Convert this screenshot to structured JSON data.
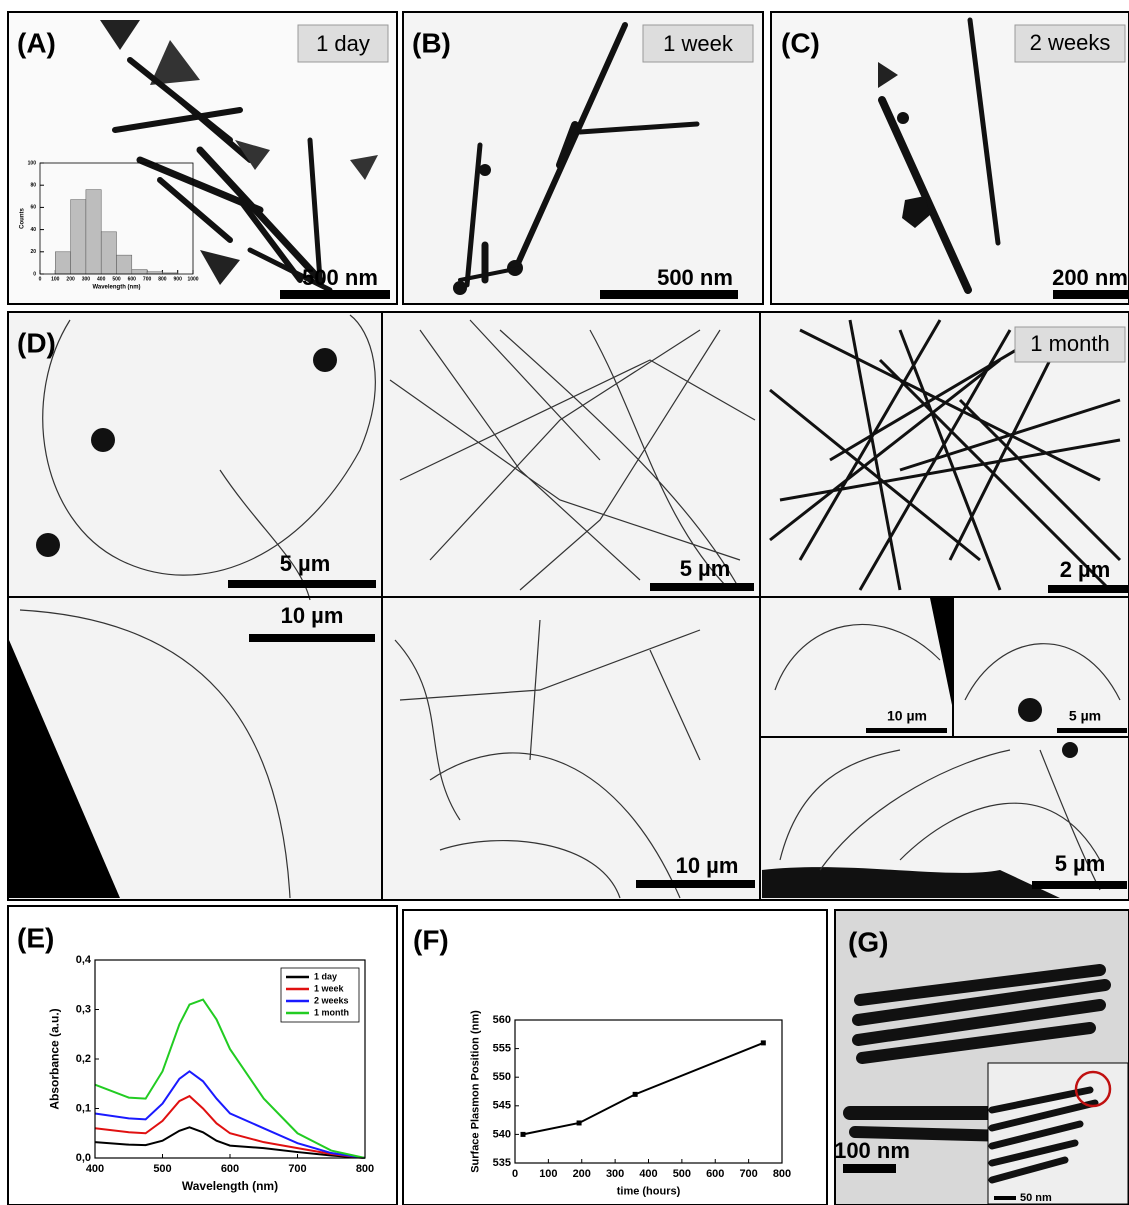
{
  "panels": [
    {
      "label": "(A)",
      "tag": "1 day",
      "scale_bar": "500 nm"
    },
    {
      "label": "(B)",
      "tag": "1 week",
      "scale_bar": "500 nm"
    },
    {
      "label": "(C)",
      "tag": "2 weeks",
      "scale_bar": "200 nm"
    },
    {
      "label": "(D)",
      "tag": "1 month",
      "scale_bars": [
        "5 µm",
        "5 µm",
        "2 µm",
        "10 µm",
        "10 µm",
        "10 µm",
        "5 µm",
        "5 µm"
      ]
    },
    {
      "label": "(E)"
    },
    {
      "label": "(F)"
    },
    {
      "label": "(G)",
      "scale_bar": "100 nm",
      "inset_scale_bar": "50 nm"
    }
  ],
  "chart_data": [
    {
      "type": "histogram",
      "xlabel": "Wavelength (nm)",
      "ylabel": "Counts",
      "bins": [
        100,
        200,
        300,
        400,
        500,
        600,
        700,
        800,
        900
      ],
      "values": [
        20,
        67,
        76,
        38,
        17,
        4,
        2,
        1
      ],
      "color": "#bdbdbd",
      "xlim": [
        0,
        1000
      ],
      "xticks": [
        0,
        100,
        200,
        300,
        400,
        500,
        600,
        700,
        800,
        900,
        1000
      ],
      "ylim": [
        0,
        100
      ],
      "yticks": [
        0,
        20,
        40,
        60,
        80,
        100
      ]
    },
    {
      "type": "line",
      "xlabel": "Wavelength (nm)",
      "ylabel": "Absorbance (a.u.)",
      "x": [
        400,
        450,
        475,
        500,
        525,
        540,
        560,
        580,
        600,
        650,
        700,
        750,
        800
      ],
      "series": [
        {
          "name": "1 day",
          "color": "#000000",
          "values": [
            0.032,
            0.027,
            0.026,
            0.035,
            0.055,
            0.062,
            0.052,
            0.035,
            0.025,
            0.02,
            0.012,
            0.005,
            0.0
          ]
        },
        {
          "name": "1 week",
          "color": "#e01010",
          "values": [
            0.06,
            0.052,
            0.05,
            0.075,
            0.115,
            0.125,
            0.1,
            0.07,
            0.05,
            0.032,
            0.02,
            0.008,
            0.0
          ]
        },
        {
          "name": "2 weeks",
          "color": "#1a1aff",
          "values": [
            0.09,
            0.08,
            0.078,
            0.11,
            0.16,
            0.175,
            0.155,
            0.12,
            0.09,
            0.06,
            0.03,
            0.01,
            0.0
          ]
        },
        {
          "name": "1 month",
          "color": "#22cc22",
          "values": [
            0.148,
            0.122,
            0.12,
            0.175,
            0.27,
            0.31,
            0.32,
            0.28,
            0.22,
            0.12,
            0.05,
            0.015,
            0.0
          ]
        }
      ],
      "xlim": [
        400,
        800
      ],
      "xticks": [
        400,
        500,
        600,
        700,
        800
      ],
      "ylim": [
        0,
        0.4
      ],
      "yticks": [
        {
          "value": 0,
          "label": "0,0"
        },
        {
          "value": 0.1,
          "label": "0,1"
        },
        {
          "value": 0.2,
          "label": "0,2"
        },
        {
          "value": 0.3,
          "label": "0,3"
        },
        {
          "value": 0.4,
          "label": "0,4"
        }
      ],
      "legend": "upper right"
    },
    {
      "type": "line",
      "xlabel": "time (hours)",
      "ylabel": "Surface Plasmon Position (nm)",
      "x": [
        24,
        192,
        360,
        744
      ],
      "values": [
        540,
        542,
        547,
        556
      ],
      "color": "#000000",
      "xlim": [
        0,
        800
      ],
      "xticks": [
        0,
        100,
        200,
        300,
        400,
        500,
        600,
        700,
        800
      ],
      "ylim": [
        535,
        560
      ],
      "yticks": [
        535,
        540,
        545,
        550,
        555,
        560
      ]
    }
  ]
}
